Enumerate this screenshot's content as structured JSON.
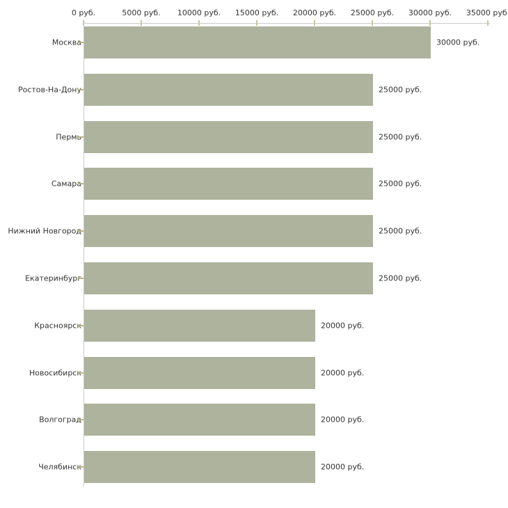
{
  "chart_data": {
    "type": "bar",
    "orientation": "horizontal",
    "title": "",
    "xlabel": "",
    "ylabel": "",
    "categories": [
      "Москва",
      "Ростов-На-Дону",
      "Пермь",
      "Самара",
      "Нижний Новгород",
      "Екатеринбург",
      "Красноярск",
      "Новосибирск",
      "Волгоград",
      "Челябинск"
    ],
    "values": [
      30000,
      25000,
      25000,
      25000,
      25000,
      25000,
      20000,
      20000,
      20000,
      20000
    ],
    "value_labels": [
      "30000 руб.",
      "25000 руб.",
      "25000 руб.",
      "25000 руб.",
      "25000 руб.",
      "25000 руб.",
      "20000 руб.",
      "20000 руб.",
      "20000 руб.",
      "20000 руб."
    ],
    "x_ticks": [
      "0 руб.",
      "5000 руб.",
      "10000 руб.",
      "15000 руб.",
      "20000 руб.",
      "25000 руб.",
      "30000 руб.",
      "35000 руб."
    ],
    "x_tick_values": [
      0,
      5000,
      10000,
      15000,
      20000,
      25000,
      30000,
      35000
    ],
    "xlim": [
      0,
      35000
    ],
    "grid": false,
    "legend": false,
    "colors": {
      "bar": "#adb39c",
      "axis_line": "#c9c9c9",
      "x_tick_mark": "#cdc49a",
      "y_tick_mark": "#b9b082",
      "text": "#333333",
      "background": "#ffffff"
    }
  }
}
